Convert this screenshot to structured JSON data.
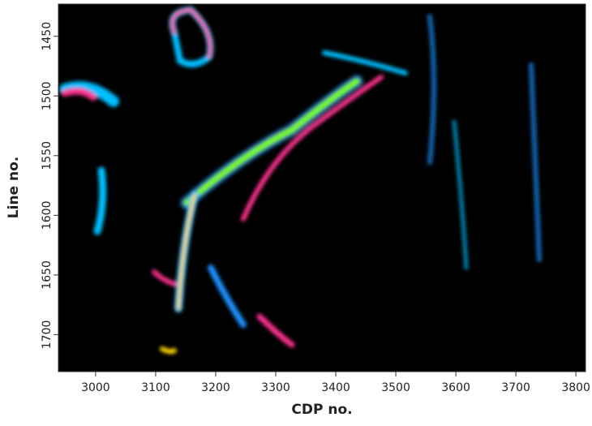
{
  "chart_data": {
    "type": "image",
    "x_label": "CDP no.",
    "y_label": "Line no.",
    "xlim": [
      2938,
      3816
    ],
    "xticks": [
      3000,
      3100,
      3200,
      3300,
      3400,
      3500,
      3600,
      3700,
      3800
    ],
    "ylim": [
      1423,
      1731
    ],
    "yticks": [
      1450,
      1500,
      1550,
      1600,
      1650,
      1700
    ],
    "y_inverted": true
  }
}
